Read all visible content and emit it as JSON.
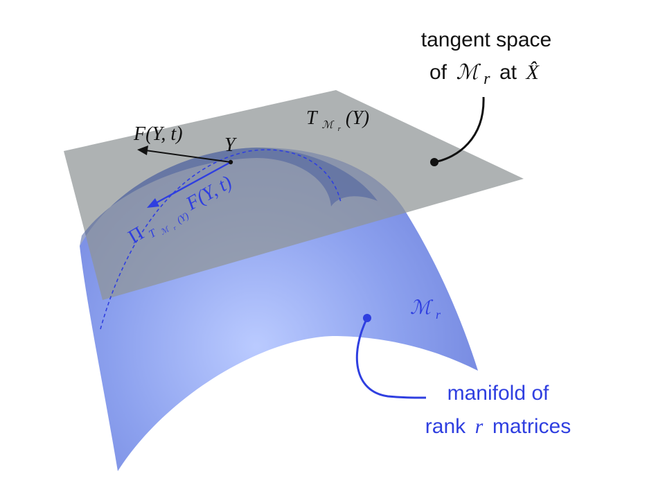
{
  "colors": {
    "background": "#ffffff",
    "tangent_plane": "#8f9496",
    "manifold": "#6f86e6",
    "manifold_highlight": "#b3c5ff",
    "blue_text": "#2f3fe0",
    "black": "#111111"
  },
  "labels": {
    "tangent_space_line1": "tangent space",
    "tangent_space_line2_of": "of",
    "tangent_space_line2_M": "ℳ",
    "tangent_space_line2_r": "r",
    "tangent_space_line2_at": "at",
    "tangent_space_line2_X": "X̂",
    "tangent_symbol_T": "T",
    "tangent_symbol_sub_M": "ℳ",
    "tangent_symbol_sub_r": "r",
    "tangent_symbol_arg": "(Y)",
    "vector_F": "F(Y, t)",
    "point_Y": "Y",
    "projection_Pi": "Π",
    "projection_sub_T": "T",
    "projection_sub_M": "ℳ",
    "projection_sub_r": "r",
    "projection_sub_arg": "(Y)",
    "projection_F": "F(Y, t)",
    "manifold_symbol_M": "ℳ",
    "manifold_symbol_r": "r",
    "manifold_line1": "manifold of",
    "manifold_line2_rank": "rank",
    "manifold_line2_r": "r",
    "manifold_line2_matrices": "matrices"
  }
}
